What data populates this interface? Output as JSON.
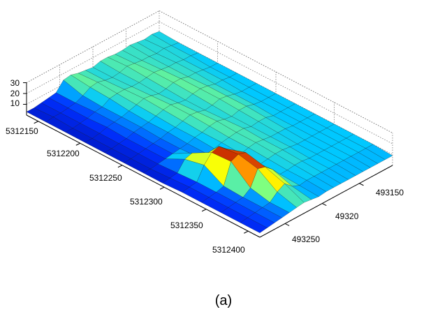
{
  "chart_data": {
    "type": "surface",
    "title": "",
    "xlabel": "",
    "ylabel": "",
    "zlabel": "",
    "grid": true,
    "colormap": [
      "#00008f",
      "#0030ff",
      "#00c8ff",
      "#7fff80",
      "#ffff00",
      "#ff7000",
      "#a00000"
    ],
    "z_ticks": [
      "10",
      "20",
      "30"
    ],
    "y_ticks": [
      "5312150",
      "5312200",
      "5312250",
      "5312300",
      "5312350",
      "5312400"
    ],
    "x_ticks": [
      "493150",
      "49320",
      "493250"
    ],
    "zlim": [
      0,
      30
    ],
    "surface": {
      "description_rows": 13,
      "description_cols": 19,
      "z": [
        [
          3,
          3,
          4,
          5,
          6,
          14,
          15,
          13,
          12,
          11,
          13,
          13,
          12,
          12,
          13,
          12,
          11,
          12,
          11
        ],
        [
          3,
          4,
          4,
          5,
          6,
          9,
          13,
          14,
          12,
          11,
          12,
          14,
          13,
          12,
          12,
          11,
          12,
          11,
          10
        ],
        [
          3,
          3,
          4,
          5,
          7,
          8,
          12,
          13,
          13,
          12,
          12,
          13,
          14,
          13,
          12,
          12,
          11,
          11,
          10
        ],
        [
          3,
          3,
          4,
          6,
          7,
          8,
          10,
          12,
          14,
          13,
          11,
          12,
          14,
          14,
          12,
          12,
          11,
          10,
          10
        ],
        [
          3,
          3,
          4,
          5,
          7,
          8,
          9,
          11,
          13,
          14,
          12,
          11,
          13,
          14,
          13,
          11,
          11,
          10,
          10
        ],
        [
          3,
          3,
          4,
          5,
          6,
          7,
          9,
          10,
          12,
          14,
          13,
          11,
          12,
          14,
          13,
          11,
          10,
          10,
          10
        ],
        [
          3,
          3,
          4,
          5,
          6,
          7,
          8,
          10,
          11,
          13,
          14,
          12,
          11,
          13,
          13,
          11,
          10,
          10,
          10
        ],
        [
          3,
          4,
          5,
          14,
          16,
          8,
          8,
          9,
          11,
          12,
          13,
          13,
          11,
          12,
          12,
          10,
          10,
          10,
          10
        ],
        [
          4,
          5,
          6,
          18,
          26,
          28,
          22,
          10,
          10,
          12,
          13,
          12,
          11,
          11,
          11,
          10,
          10,
          10,
          10
        ],
        [
          4,
          5,
          6,
          8,
          27,
          30,
          28,
          16,
          10,
          11,
          12,
          12,
          11,
          10,
          10,
          10,
          10,
          10,
          10
        ],
        [
          4,
          5,
          6,
          7,
          12,
          26,
          24,
          18,
          10,
          10,
          11,
          11,
          10,
          10,
          10,
          10,
          10,
          10,
          10
        ],
        [
          4,
          5,
          6,
          7,
          8,
          14,
          18,
          12,
          9,
          10,
          10,
          10,
          10,
          10,
          10,
          10,
          10,
          10,
          10
        ],
        [
          4,
          5,
          6,
          7,
          8,
          9,
          10,
          9,
          8,
          9,
          9,
          9,
          9,
          9,
          9,
          9,
          9,
          9,
          9
        ]
      ]
    }
  },
  "caption": "(a)"
}
